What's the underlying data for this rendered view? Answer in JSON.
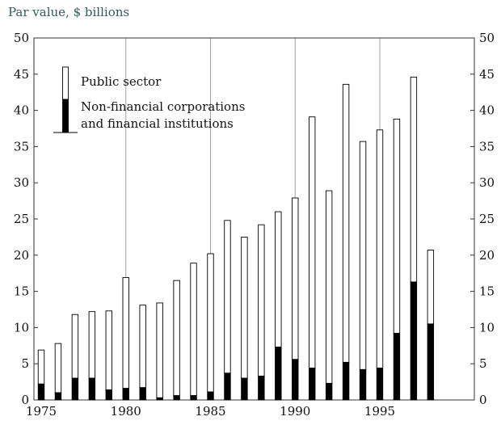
{
  "unit_label": "Par value, $ billions",
  "chart_data": {
    "type": "bar",
    "stacked": true,
    "categories": [
      1975,
      1976,
      1977,
      1978,
      1979,
      1980,
      1981,
      1982,
      1983,
      1984,
      1985,
      1986,
      1987,
      1988,
      1989,
      1990,
      1991,
      1992,
      1993,
      1994,
      1995,
      1996,
      1997,
      1998
    ],
    "series": [
      {
        "name": "Non-financial corporations and financial institutions",
        "color": "#000000",
        "values": [
          2.2,
          1.0,
          3.0,
          3.0,
          1.4,
          1.6,
          1.7,
          0.3,
          0.6,
          0.6,
          1.1,
          3.7,
          3.0,
          3.3,
          7.3,
          5.6,
          4.4,
          2.3,
          5.2,
          4.2,
          4.4,
          9.2,
          16.3,
          10.5
        ]
      },
      {
        "name": "Public sector",
        "color": "#ffffff",
        "values": [
          4.7,
          6.8,
          8.8,
          9.2,
          10.9,
          15.3,
          11.4,
          13.1,
          15.9,
          18.3,
          19.1,
          21.1,
          19.5,
          20.9,
          18.7,
          22.3,
          34.7,
          26.6,
          38.4,
          31.5,
          32.9,
          29.6,
          28.3,
          10.2
        ]
      }
    ],
    "ylim": [
      0,
      50
    ],
    "yticks": [
      0,
      5,
      10,
      15,
      20,
      25,
      30,
      35,
      40,
      45,
      50
    ],
    "xtick_labels": [
      1975,
      1980,
      1985,
      1990,
      1995
    ],
    "grid": {
      "vertical_at": [
        1980,
        1985,
        1990,
        1995
      ],
      "horizontal": false
    },
    "legend": {
      "placement": "top-left",
      "entries": [
        "Public sector",
        "Non-financial corporations",
        "and financial institutions"
      ]
    }
  }
}
